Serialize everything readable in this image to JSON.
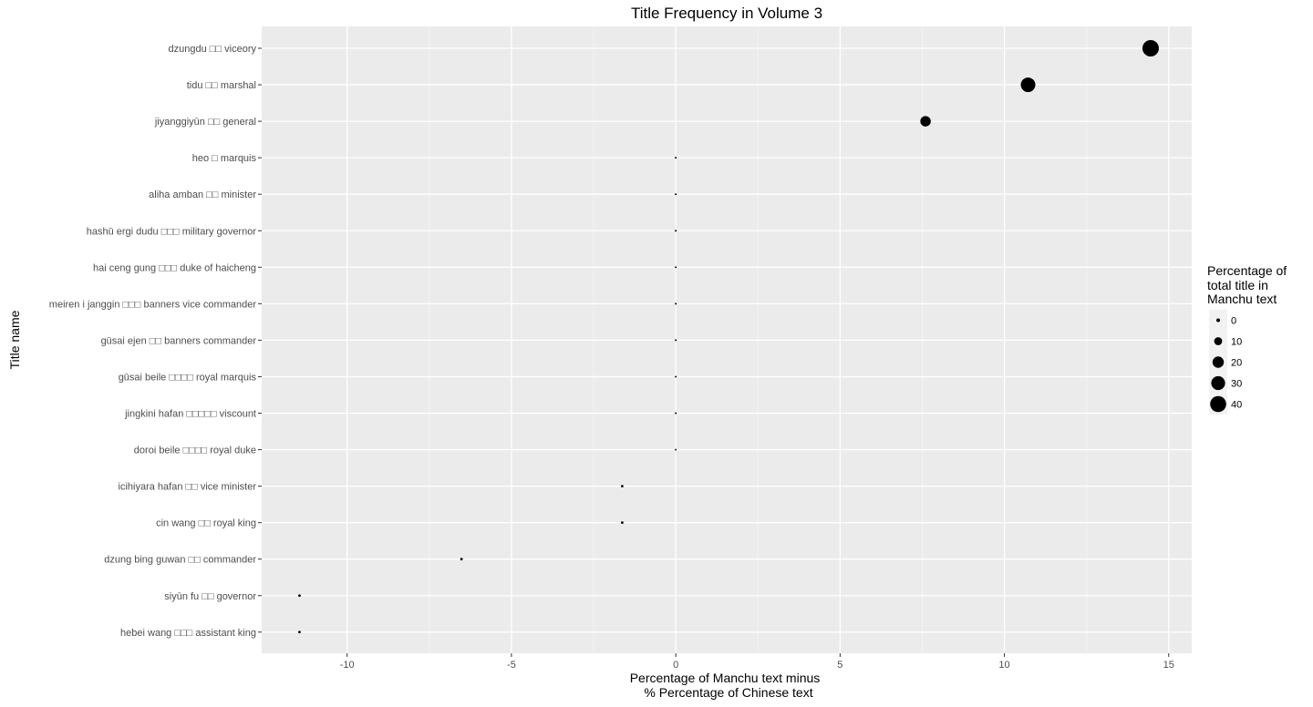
{
  "chart_data": {
    "type": "scatter",
    "title": "Title Frequency in Volume 3",
    "xlabel": [
      "Percentage of Manchu text minus",
      "% Percentage of Chinese text"
    ],
    "ylabel": "Title name",
    "xlim": [
      -12.6,
      15.7
    ],
    "x_ticks": [
      -10,
      -5,
      0,
      5,
      10,
      15
    ],
    "x_tick_labels": [
      "-10",
      "-5",
      "0",
      "5",
      "10",
      "15"
    ],
    "grid": true,
    "legend_placement": "right",
    "legend": {
      "title": [
        "Percentage of",
        "total title in",
        "Manchu text"
      ],
      "sizes": [
        0,
        10,
        20,
        30,
        40
      ],
      "labels": [
        "0",
        "10",
        "20",
        "30",
        "40"
      ]
    },
    "categories": [
      "dzungdu □□ viceory",
      "tidu □□ marshal",
      "jiyanggiyūn □□ general",
      "heo □ marquis",
      "aliha  amban □□ minister",
      "hashū  ergi  dudu □□□ military governor",
      "hai  ceng  gung □□□ duke of haicheng",
      "meiren  i  janggin □□□ banners vice commander",
      "gūsai  ejen □□ banners commander",
      "gūsai  beile □□□□ royal marquis",
      "jingkini  hafan □□□□□ viscount",
      "doroi  beile □□□□ royal duke",
      "icihiyara  hafan □□ vice minister",
      "cin  wang □□ royal king",
      "dzung  bing guwan □□ commander",
      "siyūn  fu □□ governor",
      "hebei  wang □□□ assistant king"
    ],
    "x": [
      14.45,
      10.72,
      7.6,
      0,
      0,
      0,
      0,
      0,
      0,
      0,
      0,
      0,
      -1.63,
      -1.63,
      -6.52,
      -11.45,
      -11.45
    ],
    "size": [
      42,
      33,
      17,
      0.5,
      0.5,
      0.5,
      0.5,
      0.5,
      0.5,
      0.5,
      0.5,
      0.5,
      1,
      1,
      1,
      1,
      1
    ]
  }
}
